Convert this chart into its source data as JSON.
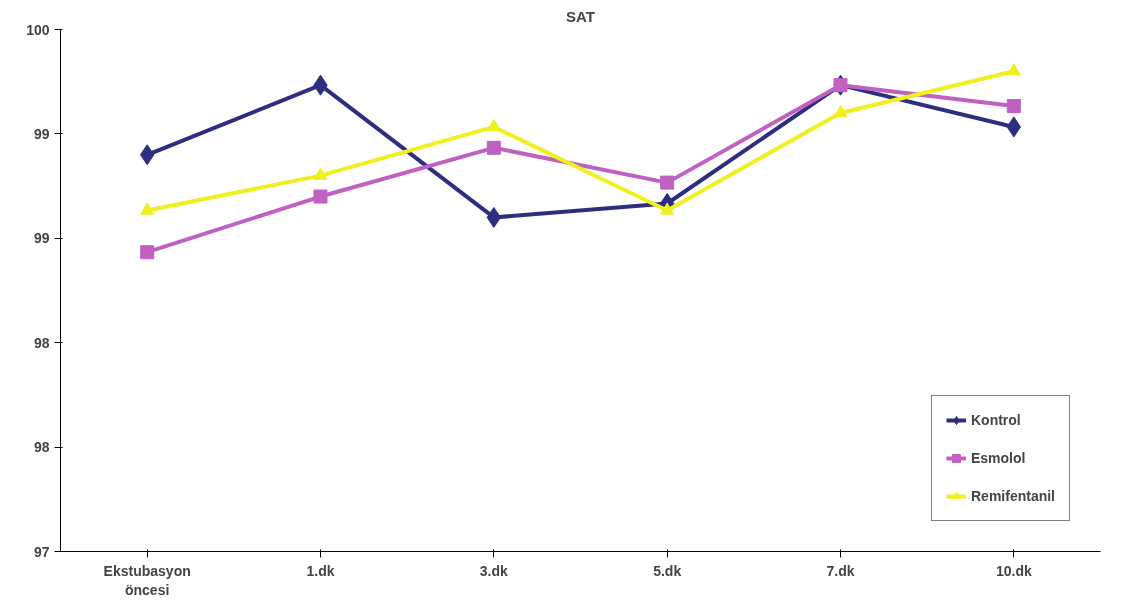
{
  "chart_data": {
    "type": "line",
    "title": "SAT",
    "categories": [
      "Ekstubasyon\nöncesi",
      "1.dk",
      "3.dk",
      "5.dk",
      "7.dk",
      "10.dk"
    ],
    "ylim": [
      97,
      100
    ],
    "yticks": [
      97,
      {
        "value": 97.6,
        "label": "98"
      },
      {
        "value": 98.2,
        "label": "98"
      },
      {
        "value": 98.8,
        "label": "99"
      },
      {
        "value": 99.4,
        "label": "99"
      },
      100
    ],
    "grid": false,
    "legend": "bottom right",
    "series": [
      {
        "name": "Kontrol",
        "color": "#2e2e80",
        "marker": "diamond",
        "values": [
          99.28,
          99.68,
          98.92,
          99.0,
          99.68,
          99.44
        ]
      },
      {
        "name": "Esmolol",
        "color": "#c060c0",
        "marker": "square",
        "values": [
          98.72,
          99.04,
          99.32,
          99.12,
          99.68,
          99.56
        ]
      },
      {
        "name": "Remifentanil",
        "color": "#f0f020",
        "marker": "triangle",
        "values": [
          98.96,
          99.16,
          99.44,
          98.96,
          99.52,
          99.76
        ]
      }
    ]
  }
}
